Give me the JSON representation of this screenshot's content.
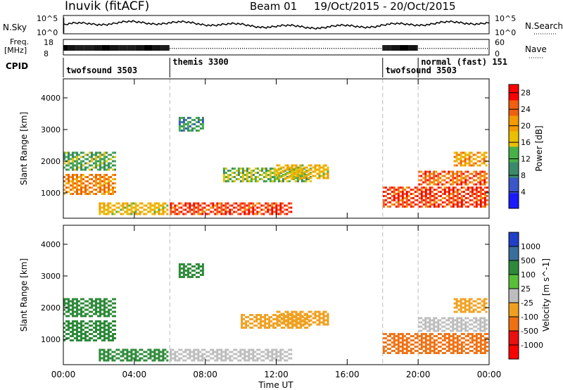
{
  "header": {
    "station": "Inuvik (fitACF)",
    "beam": "Beam 01",
    "date_range": "19/Oct/2015 - 20/Oct/2015"
  },
  "aux": {
    "nsky_label": "N.Sky",
    "nsky_ticks": [
      "10^5",
      "10^0"
    ],
    "nsearch_label": "N.Search",
    "nsearch_ticks": [
      "10^5",
      "10^0"
    ],
    "freq_label": "Freq.",
    "freq_unit": "[MHz]",
    "freq_ticks": [
      "18",
      "8"
    ],
    "nave_label": "Nave",
    "nave_ticks": [
      "60",
      "0"
    ],
    "cpid_label": "CPID",
    "cpid_segments": [
      {
        "label": "twofsound 3503",
        "start": 0,
        "end": 6
      },
      {
        "label": "themis 3300",
        "start": 6,
        "end": 18
      },
      {
        "label": "twofsound 3503",
        "start": 18,
        "end": 20
      },
      {
        "label": "normal (fast) 151",
        "start": 20,
        "end": 24
      }
    ]
  },
  "chart_data": [
    {
      "type": "heatmap",
      "title": "",
      "xlabel": "Time UT",
      "ylabel": "Slant Range [km]",
      "xlim": [
        0,
        24
      ],
      "ylim": [
        200,
        4600
      ],
      "yticks": [
        1000,
        2000,
        3000,
        4000
      ],
      "xtick_labels": [
        "00:00",
        "04:00",
        "08:00",
        "12:00",
        "16:00",
        "20:00",
        "00:00"
      ],
      "colorbar": {
        "label": "Power [dB]",
        "ticks": [
          4,
          8,
          12,
          16,
          20,
          24,
          28
        ],
        "range": [
          0,
          30
        ],
        "colors": [
          "#1a1aff",
          "#3a56c9",
          "#3a8a6a",
          "#48b048",
          "#e8c000",
          "#f59a00",
          "#f06010",
          "#ff0000"
        ]
      },
      "echo_regions": [
        {
          "t": [
            0,
            3
          ],
          "r": [
            900,
            1600
          ],
          "v": 22
        },
        {
          "t": [
            0,
            3
          ],
          "r": [
            1700,
            2300
          ],
          "v": 12
        },
        {
          "t": [
            2,
            6
          ],
          "r": [
            300,
            700
          ],
          "v": 18
        },
        {
          "t": [
            6.5,
            8
          ],
          "r": [
            2900,
            3400
          ],
          "v": 10
        },
        {
          "t": [
            6,
            13
          ],
          "r": [
            250,
            700
          ],
          "v": 26
        },
        {
          "t": [
            9,
            14
          ],
          "r": [
            1300,
            1800
          ],
          "v": 14
        },
        {
          "t": [
            12,
            15
          ],
          "r": [
            1400,
            1900
          ],
          "v": 18
        },
        {
          "t": [
            18,
            24
          ],
          "r": [
            500,
            1200
          ],
          "v": 26
        },
        {
          "t": [
            20,
            24
          ],
          "r": [
            1200,
            1700
          ],
          "v": 24
        },
        {
          "t": [
            22,
            24
          ],
          "r": [
            1800,
            2300
          ],
          "v": 20
        }
      ]
    },
    {
      "type": "heatmap",
      "title": "",
      "xlabel": "Time UT",
      "ylabel": "Slant Range [km]",
      "xlim": [
        0,
        24
      ],
      "ylim": [
        200,
        4600
      ],
      "yticks": [
        1000,
        2000,
        3000,
        4000
      ],
      "xtick_labels": [
        "00:00",
        "04:00",
        "08:00",
        "12:00",
        "16:00",
        "20:00",
        "00:00"
      ],
      "colorbar": {
        "label": "Velocity [m s^-1]",
        "tick_labels": [
          "1000",
          "500",
          "100",
          "25",
          "-25",
          "-100",
          "-500",
          "-1000"
        ],
        "colors": [
          "#1f3fc8",
          "#3a6e9a",
          "#2e8a3a",
          "#58c038",
          "#bdbdbd",
          "#f0a020",
          "#f07010",
          "#e81010",
          "#ff0000"
        ]
      },
      "echo_regions": [
        {
          "t": [
            0,
            3
          ],
          "r": [
            900,
            1600
          ],
          "v": 100
        },
        {
          "t": [
            0,
            3
          ],
          "r": [
            1700,
            2300
          ],
          "v": 100
        },
        {
          "t": [
            2,
            6
          ],
          "r": [
            300,
            700
          ],
          "v": 100
        },
        {
          "t": [
            6.5,
            8
          ],
          "r": [
            2900,
            3400
          ],
          "v": 100
        },
        {
          "t": [
            6,
            13
          ],
          "r": [
            300,
            700
          ],
          "v": 0
        },
        {
          "t": [
            10,
            14
          ],
          "r": [
            1300,
            1800
          ],
          "v": -100
        },
        {
          "t": [
            12,
            15
          ],
          "r": [
            1400,
            1900
          ],
          "v": -100
        },
        {
          "t": [
            18,
            24
          ],
          "r": [
            500,
            1200
          ],
          "v": -500
        },
        {
          "t": [
            20,
            24
          ],
          "r": [
            1200,
            1700
          ],
          "v": 0
        },
        {
          "t": [
            22,
            24
          ],
          "r": [
            1800,
            2300
          ],
          "v": -100
        }
      ]
    }
  ]
}
